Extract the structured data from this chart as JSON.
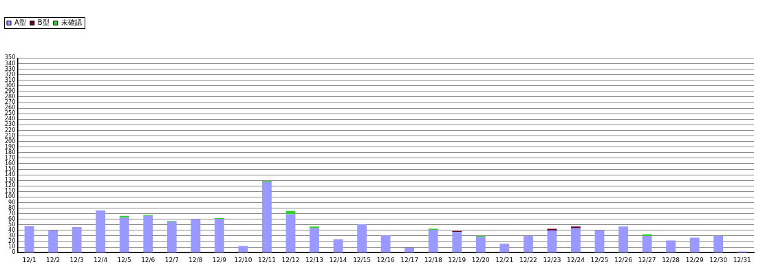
{
  "chart_data": {
    "type": "bar",
    "stacked": true,
    "categories": [
      "12/1",
      "12/2",
      "12/3",
      "12/4",
      "12/5",
      "12/6",
      "12/7",
      "12/8",
      "12/9",
      "12/10",
      "12/11",
      "12/12",
      "12/13",
      "12/14",
      "12/15",
      "12/16",
      "12/17",
      "12/18",
      "12/19",
      "12/20",
      "12/21",
      "12/22",
      "12/23",
      "12/24",
      "12/25",
      "12/26",
      "12/27",
      "12/28",
      "12/29",
      "12/30",
      "12/31"
    ],
    "series": [
      {
        "name": "A型",
        "color": "#9999ff",
        "values": [
          48,
          40,
          46,
          76,
          63,
          66,
          56,
          60,
          61,
          12,
          127,
          69,
          44,
          24,
          51,
          31,
          9,
          41,
          37,
          28,
          16,
          30,
          40,
          44,
          40,
          47,
          30,
          22,
          27,
          30,
          2
        ]
      },
      {
        "name": "B型",
        "color": "#660033",
        "values": [
          0,
          0,
          0,
          0,
          0,
          0,
          0,
          0,
          0,
          0,
          0,
          0,
          0,
          0,
          0,
          0,
          0,
          0,
          2,
          0,
          0,
          0,
          3,
          3,
          0,
          0,
          0,
          0,
          0,
          0,
          0
        ]
      },
      {
        "name": "未確認",
        "color": "#33cc33",
        "values": [
          0,
          0,
          0,
          0,
          3,
          2,
          1,
          0,
          1,
          0,
          2,
          6,
          3,
          0,
          0,
          0,
          0,
          2,
          0,
          2,
          0,
          0,
          0,
          0,
          0,
          0,
          3,
          0,
          0,
          0,
          0
        ]
      }
    ],
    "ylim": [
      0,
      350
    ],
    "yticks": [
      0,
      10,
      20,
      30,
      40,
      50,
      60,
      70,
      80,
      90,
      100,
      110,
      120,
      130,
      140,
      150,
      160,
      170,
      180,
      190,
      200,
      210,
      220,
      230,
      240,
      250,
      260,
      270,
      280,
      290,
      300,
      310,
      320,
      330,
      340,
      350
    ],
    "grid": "y",
    "legend": "top"
  }
}
